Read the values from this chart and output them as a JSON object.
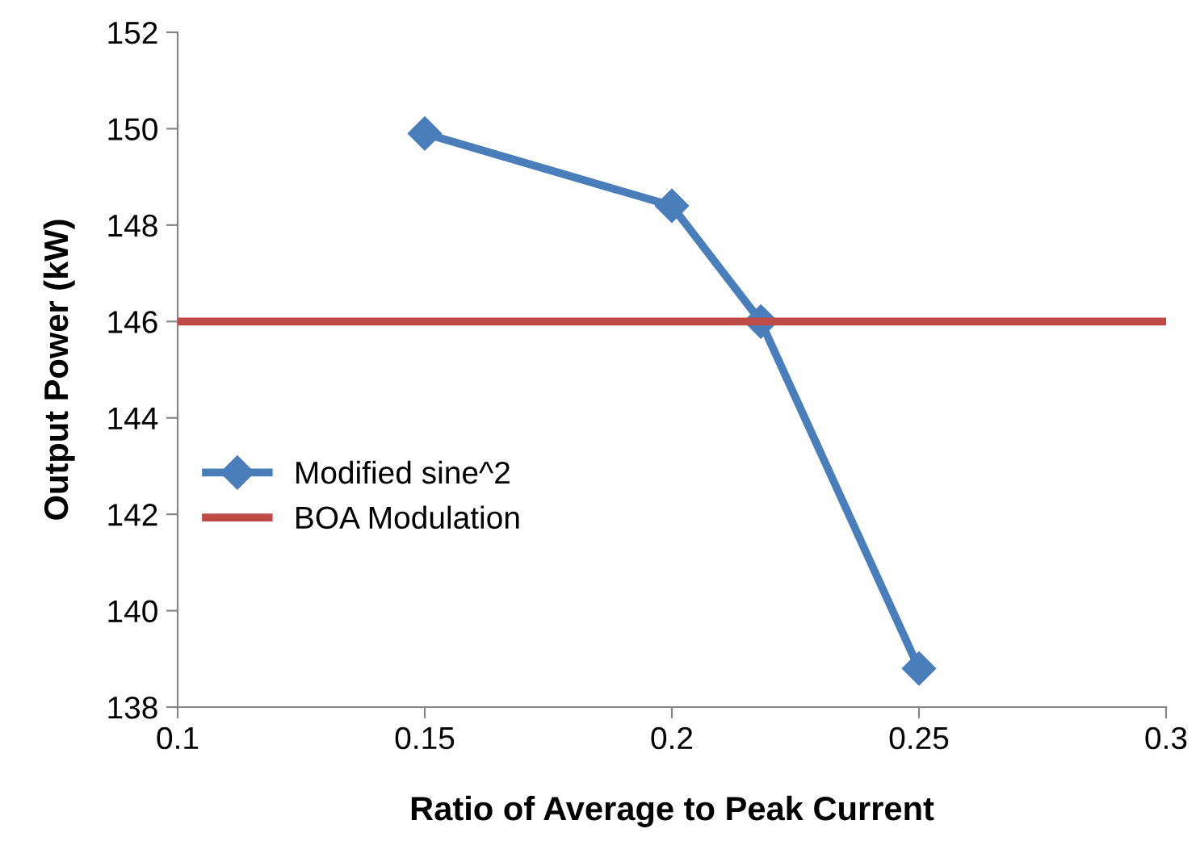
{
  "chart_data": {
    "type": "line",
    "xlabel": "Ratio of Average to Peak Current",
    "ylabel": "Output Power (kW)",
    "xlim": [
      0.1,
      0.3
    ],
    "xticks": [
      0.1,
      0.15,
      0.2,
      0.25,
      0.3
    ],
    "ylim": [
      138,
      152
    ],
    "yticks": [
      138,
      140,
      142,
      144,
      146,
      148,
      150,
      152
    ],
    "grid": false,
    "legend": "left",
    "series": [
      {
        "name": "Modified sine^2",
        "color": "#4a7ebb",
        "x": [
          0.15,
          0.2,
          0.218,
          0.25
        ],
        "values": [
          149.9,
          148.4,
          146.0,
          138.8
        ],
        "marker": "diamond"
      },
      {
        "name": "BOA Modulation",
        "color": "#be4b48",
        "x": [
          0.1,
          0.3
        ],
        "values": [
          146.0,
          146.0
        ],
        "marker": "none"
      }
    ]
  }
}
